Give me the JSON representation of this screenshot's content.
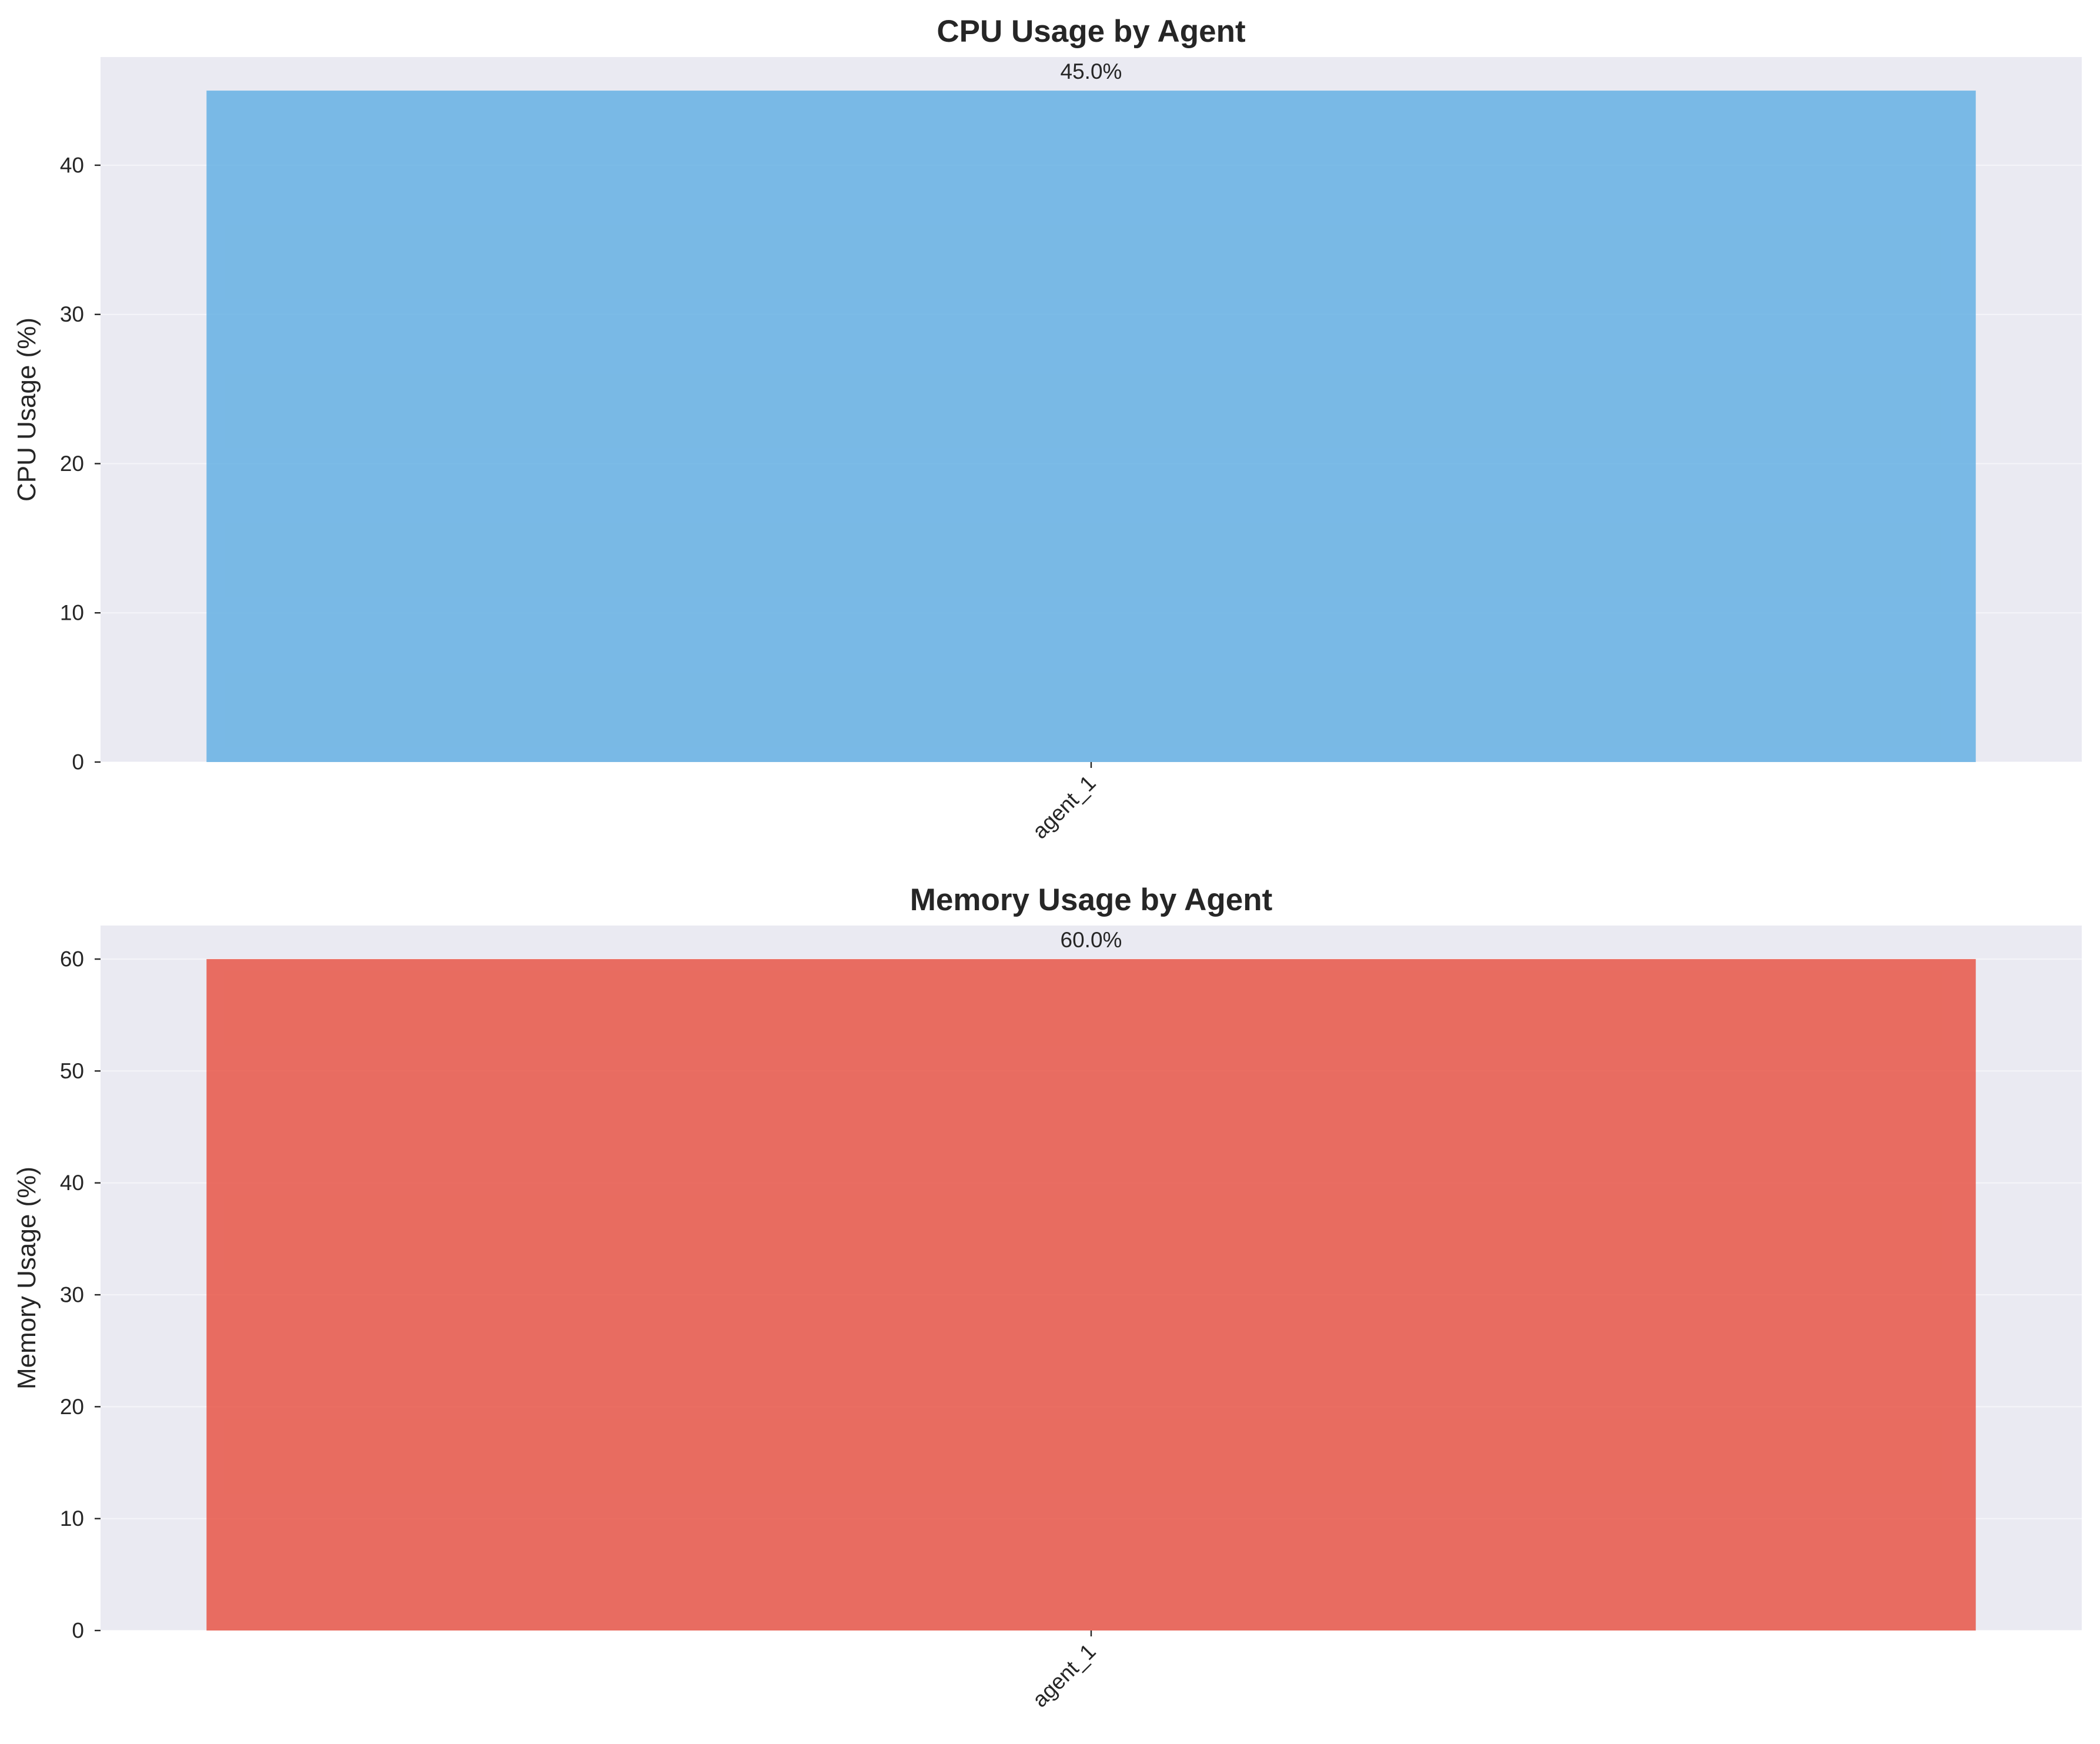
{
  "chart_data": [
    {
      "type": "bar",
      "title": "CPU Usage by Agent",
      "xlabel": "",
      "ylabel": "CPU Usage (%)",
      "categories": [
        "agent_1"
      ],
      "values": [
        45.0
      ],
      "data_labels": [
        "45.0%"
      ],
      "ylim": [
        0,
        47.25
      ],
      "yticks": [
        0,
        10,
        20,
        30,
        40
      ],
      "ytick_labels": [
        "0",
        "10",
        "20",
        "30",
        "40"
      ],
      "grid": true,
      "bar_color": "#5dade2"
    },
    {
      "type": "bar",
      "title": "Memory Usage by Agent",
      "xlabel": "",
      "ylabel": "Memory Usage (%)",
      "categories": [
        "agent_1"
      ],
      "values": [
        60.0
      ],
      "data_labels": [
        "60.0%"
      ],
      "ylim": [
        0,
        63
      ],
      "yticks": [
        0,
        10,
        20,
        30,
        40,
        50,
        60
      ],
      "ytick_labels": [
        "0",
        "10",
        "20",
        "30",
        "40",
        "50",
        "60"
      ],
      "grid": true,
      "bar_color": "#e74c3c"
    }
  ]
}
